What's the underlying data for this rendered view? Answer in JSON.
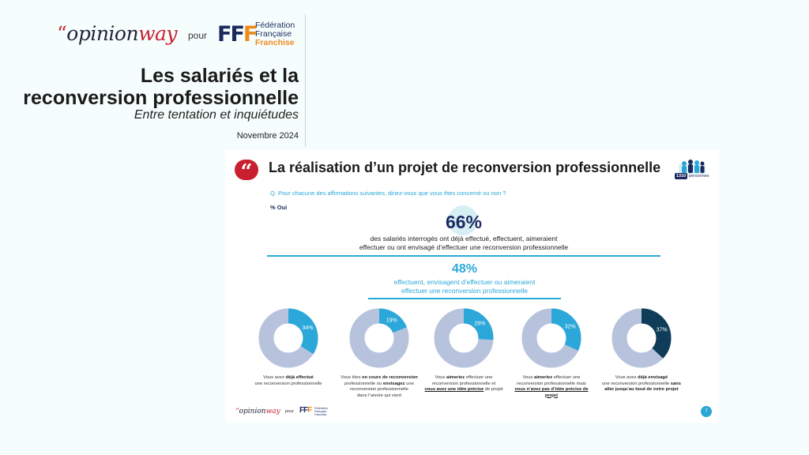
{
  "header": {
    "logo_opinionway": {
      "quote": "“",
      "opinion": "opinion",
      "way": "way"
    },
    "pour": "pour",
    "fff_logo": {
      "mark_part1": "FF",
      "mark_part2": "F",
      "line1": "Fédération",
      "line2": "Française",
      "line3": "Franchise"
    },
    "title_line1": "Les salariés et la",
    "title_line2": "reconversion professionnelle",
    "subtitle": "Entre tentation et inquiétudes",
    "date": "Novembre 2024"
  },
  "slide": {
    "quote_mark": "“",
    "title": "La réalisation d’un projet de reconversion professionnelle",
    "respondents_count": "1310",
    "respondents_label": "personnes",
    "question": "Q. Pour chacune des affirmations suivantes, diriez-vous que vous êtes concerné ou non ?",
    "measure": "% Oui",
    "stat_66": {
      "value": "66%",
      "line1": "des salariés interrogés ont déjà effectué, effectuent, aimeraient",
      "line2": "effectuer ou ont envisagé d’effectuer une reconversion professionnelle"
    },
    "stat_48": {
      "value": "48%",
      "line1": "effectuent, envisagent d’effectuer ou aimeraient",
      "line2": "effectuer une reconversion professionnelle"
    },
    "page_number": "7",
    "colors": {
      "accent": "#2ba8d9",
      "navy": "#1a2a5e",
      "track": "#b7c3dd",
      "dark_slice": "#0f3d59",
      "brand_red": "#c8202e"
    }
  },
  "donuts": [
    {
      "percent": 34,
      "label": "34%",
      "text": [
        [
          "Vous avez ",
          ""
        ],
        [
          "déjà effectué",
          "b"
        ],
        [
          "une reconversion professionnelle",
          "br"
        ]
      ]
    },
    {
      "percent": 19,
      "label": "19%",
      "text": [
        [
          "Vous êtes ",
          ""
        ],
        [
          "en cours de reconversion",
          "b"
        ],
        [
          "professionnelle",
          "br"
        ],
        [
          " ou ",
          ""
        ],
        [
          "envisagez",
          "b"
        ],
        [
          " une",
          ""
        ],
        [
          "reconversion professionnelle",
          "br"
        ],
        [
          "dans l’année qui vient",
          "br"
        ]
      ]
    },
    {
      "percent": 26,
      "label": "26%",
      "text": [
        [
          "Vous ",
          ""
        ],
        [
          "aimeriez",
          "b"
        ],
        [
          " effectuer une",
          ""
        ],
        [
          "reconversion professionnelle  et",
          "br"
        ],
        [
          "vous avez une idée précise",
          "bru"
        ],
        [
          " de projet",
          ""
        ]
      ]
    },
    {
      "percent": 32,
      "label": "32%",
      "text": [
        [
          "Vous ",
          ""
        ],
        [
          "aimeriez",
          "b"
        ],
        [
          " effectuer une",
          ""
        ],
        [
          "reconversion professionnelle mais",
          "br"
        ],
        [
          "vous n’avez pas d’idée précise de projet",
          "bru"
        ]
      ]
    },
    {
      "percent": 37,
      "label": "37%",
      "text": [
        [
          "Vous avez ",
          ""
        ],
        [
          "déjà envisagé",
          "b"
        ],
        [
          "une reconversion professionnelle ",
          "br"
        ],
        [
          "sans",
          "b"
        ],
        [
          "aller jusqu’au bout de votre projet",
          "brb"
        ]
      ]
    }
  ],
  "footer": {
    "logo_opinionway": {
      "quote": "“",
      "opinion": "opinion",
      "way": "way"
    },
    "pour": "pour",
    "fff_mark_part1": "FF",
    "fff_mark_part2": "F",
    "fff_line1": "Fédération",
    "fff_line2": "Française",
    "fff_line3": "Franchise"
  }
}
